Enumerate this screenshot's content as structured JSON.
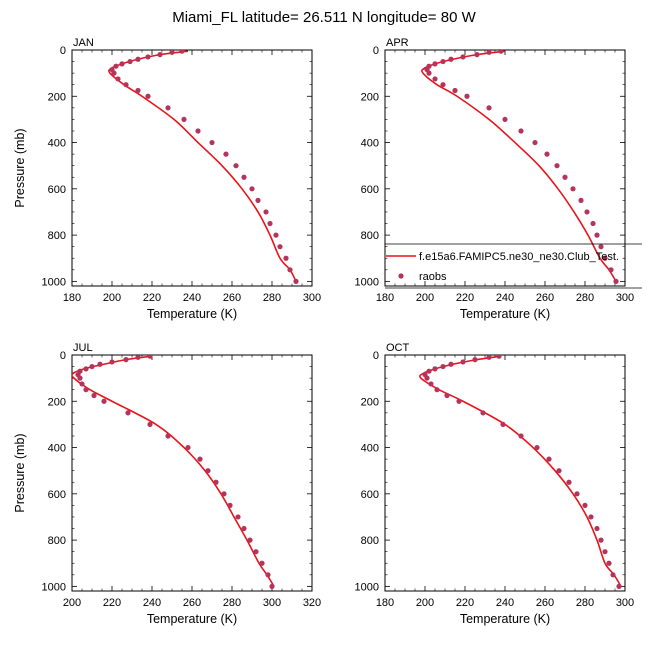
{
  "figure": {
    "title": "Miami_FL  latitude= 26.511 N longitude= 80 W"
  },
  "legend": {
    "model_label": "f.e15a6.FAMIPC5.ne30_ne30.Club_Test.",
    "obs_label": "raobs",
    "model_color": "#e8141a",
    "obs_color": "#b5345c",
    "placement": "right of APR panel, bottom"
  },
  "chart_data": [
    {
      "type": "line",
      "panel_label": "JAN",
      "xlabel": "Temperature (K)",
      "ylabel": "Pressure (mb)",
      "xlim": [
        180,
        300
      ],
      "ylim": [
        0,
        1020
      ],
      "y_inverted": true,
      "xticks": [
        180,
        200,
        220,
        240,
        260,
        280,
        300
      ],
      "yticks": [
        0,
        200,
        400,
        600,
        800,
        1000
      ],
      "grid": false,
      "series": [
        {
          "kind": "line",
          "x": [
            292.0,
            289.0,
            284.0,
            279.0,
            273.0,
            265.0,
            255.0,
            243.0,
            231.0,
            215.0,
            206.0,
            199.0,
            199.5,
            205.0,
            213.0,
            224.0,
            238.0
          ],
          "y": [
            1000,
            950,
            900,
            800,
            700,
            600,
            500,
            400,
            300,
            200,
            150,
            100,
            80,
            60,
            40,
            20,
            5
          ]
        },
        {
          "kind": "points",
          "x": [
            292,
            289,
            287,
            284,
            282,
            279,
            277,
            273,
            270,
            266,
            262,
            257,
            250,
            243,
            236,
            228,
            218,
            213,
            207,
            203,
            201,
            200,
            202,
            205,
            209,
            213,
            218,
            224,
            230,
            235
          ],
          "y": [
            1000,
            950,
            900,
            850,
            800,
            750,
            700,
            650,
            600,
            550,
            500,
            450,
            400,
            350,
            300,
            250,
            200,
            175,
            150,
            125,
            100,
            85,
            70,
            60,
            50,
            40,
            30,
            20,
            10,
            5
          ]
        }
      ]
    },
    {
      "type": "line",
      "panel_label": "APR",
      "xlabel": "Temperature (K)",
      "ylabel": "",
      "xlim": [
        180,
        300
      ],
      "ylim": [
        0,
        1020
      ],
      "y_inverted": true,
      "xticks": [
        180,
        200,
        220,
        240,
        260,
        280,
        300
      ],
      "yticks": [
        0,
        200,
        400,
        600,
        800,
        1000
      ],
      "grid": false,
      "series": [
        {
          "kind": "line",
          "x": [
            295.5,
            292.0,
            287.5,
            281.5,
            274.5,
            266.5,
            257.0,
            245.0,
            232.0,
            216.0,
            206.0,
            199.0,
            199.5,
            205.0,
            214.0,
            226.0,
            240.0
          ],
          "y": [
            1000,
            950,
            900,
            800,
            700,
            600,
            500,
            400,
            300,
            200,
            150,
            100,
            80,
            60,
            40,
            20,
            5
          ]
        },
        {
          "kind": "points",
          "x": [
            295.5,
            293,
            290,
            288,
            286,
            284,
            281,
            278,
            274,
            270,
            266,
            261,
            255,
            248,
            240,
            232,
            221,
            215,
            209,
            205,
            202,
            201,
            202,
            205,
            209,
            213,
            219,
            226,
            232,
            238
          ],
          "y": [
            1000,
            950,
            900,
            850,
            800,
            750,
            700,
            650,
            600,
            550,
            500,
            450,
            400,
            350,
            300,
            250,
            200,
            175,
            150,
            125,
            100,
            85,
            70,
            60,
            50,
            40,
            30,
            20,
            10,
            5
          ]
        }
      ]
    },
    {
      "type": "line",
      "panel_label": "JUL",
      "xlabel": "Temperature (K)",
      "ylabel": "Pressure (mb)",
      "xlim": [
        200,
        320
      ],
      "ylim": [
        0,
        1020
      ],
      "y_inverted": true,
      "xticks": [
        200,
        220,
        240,
        260,
        280,
        300,
        320
      ],
      "yticks": [
        0,
        200,
        400,
        600,
        800,
        1000
      ],
      "grid": false,
      "series": [
        {
          "kind": "line",
          "x": [
            301.0,
            297.5,
            293.5,
            287.5,
            281.0,
            274.5,
            266.5,
            256.0,
            242.0,
            220.0,
            209.0,
            201.0,
            200.5,
            206.0,
            216.0,
            227.0,
            240.0
          ],
          "y": [
            1000,
            950,
            900,
            800,
            700,
            600,
            500,
            400,
            300,
            200,
            150,
            100,
            80,
            60,
            40,
            20,
            5
          ]
        },
        {
          "kind": "points",
          "x": [
            300,
            298,
            295,
            292,
            289,
            286,
            283,
            279,
            276,
            272,
            268,
            264,
            258,
            248,
            239,
            228,
            216,
            211,
            207,
            205,
            204,
            203,
            204,
            207,
            210,
            214,
            220,
            227,
            233,
            239
          ],
          "y": [
            1000,
            950,
            900,
            850,
            800,
            750,
            700,
            650,
            600,
            550,
            500,
            450,
            400,
            350,
            300,
            250,
            200,
            175,
            150,
            125,
            100,
            85,
            70,
            60,
            50,
            40,
            30,
            20,
            10,
            5
          ]
        }
      ]
    },
    {
      "type": "line",
      "panel_label": "OCT",
      "xlabel": "Temperature (K)",
      "ylabel": "",
      "xlim": [
        180,
        300
      ],
      "ylim": [
        0,
        1020
      ],
      "y_inverted": true,
      "xticks": [
        180,
        200,
        220,
        240,
        260,
        280,
        300
      ],
      "yticks": [
        0,
        200,
        400,
        600,
        800,
        1000
      ],
      "grid": false,
      "series": [
        {
          "kind": "line",
          "x": [
            298.0,
            294.5,
            290.0,
            286.0,
            281.0,
            274.0,
            265.0,
            254.0,
            240.0,
            219.0,
            207.0,
            198.0,
            199.0,
            205.0,
            214.0,
            226.0,
            238.0
          ],
          "y": [
            1000,
            950,
            900,
            800,
            700,
            600,
            500,
            400,
            300,
            200,
            150,
            100,
            80,
            60,
            40,
            20,
            5
          ]
        },
        {
          "kind": "points",
          "x": [
            297,
            294,
            292,
            290,
            288,
            286,
            283,
            280,
            276,
            272,
            267,
            262,
            256,
            248,
            239,
            229,
            217,
            211,
            206,
            203,
            201,
            200,
            202,
            205,
            209,
            213,
            219,
            225,
            232,
            237
          ],
          "y": [
            1000,
            950,
            900,
            850,
            800,
            750,
            700,
            650,
            600,
            550,
            500,
            450,
            400,
            350,
            300,
            250,
            200,
            175,
            150,
            125,
            100,
            85,
            70,
            60,
            50,
            40,
            30,
            20,
            10,
            5
          ]
        }
      ]
    }
  ]
}
